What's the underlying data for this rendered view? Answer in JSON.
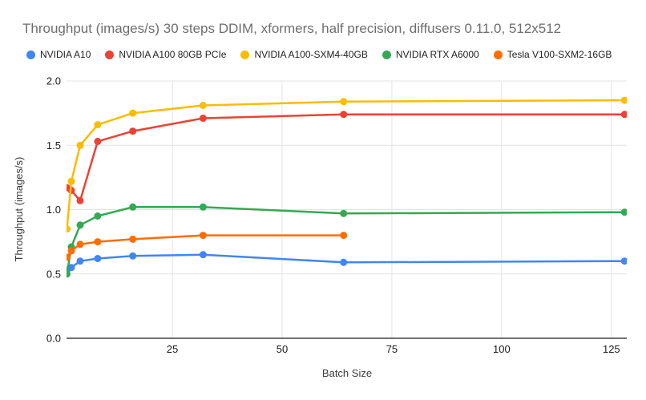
{
  "chart_data": {
    "type": "line",
    "title": "Throughput (images/s) 30 steps DDIM, xformers, half precision, diffusers 0.11.0, 512x512",
    "xlabel": "Batch Size",
    "ylabel": "Throughput (images/s)",
    "x": [
      1,
      2,
      4,
      8,
      16,
      32,
      64,
      128
    ],
    "series": [
      {
        "name": "NVIDIA A10",
        "color": "#4285F4",
        "values": [
          0.53,
          0.55,
          0.6,
          0.62,
          0.64,
          0.65,
          0.59,
          0.6
        ]
      },
      {
        "name": "NVIDIA A100 80GB PCIe",
        "color": "#EA4335",
        "values": [
          1.17,
          1.15,
          1.07,
          1.53,
          1.61,
          1.71,
          1.74,
          1.74
        ]
      },
      {
        "name": "NVIDIA A100-SXM4-40GB",
        "color": "#FBBC04",
        "values": [
          0.85,
          1.22,
          1.5,
          1.66,
          1.75,
          1.81,
          1.84,
          1.85
        ]
      },
      {
        "name": "NVIDIA RTX A6000",
        "color": "#34A853",
        "values": [
          0.5,
          0.71,
          0.88,
          0.95,
          1.02,
          1.02,
          0.97,
          0.98
        ]
      },
      {
        "name": "Tesla V100-SXM2-16GB",
        "color": "#FF6D01",
        "x": [
          1,
          2,
          4,
          8,
          16,
          32,
          64
        ],
        "values": [
          0.63,
          0.68,
          0.73,
          0.75,
          0.77,
          0.8,
          0.8
        ]
      }
    ],
    "xticks": [
      25,
      50,
      75,
      100,
      125
    ],
    "yticks": [
      "0.0",
      "0.5",
      "1.0",
      "1.5",
      "2.0"
    ],
    "xlim": [
      0.9,
      128.5
    ],
    "ylim": [
      0,
      2
    ],
    "grid": true,
    "legend_position": "top",
    "colors": {
      "grid_line": "#e3e3e3",
      "axis_line": "#424242",
      "tick_label": "#1a1a1a",
      "title_text": "#6e6e6e"
    }
  }
}
